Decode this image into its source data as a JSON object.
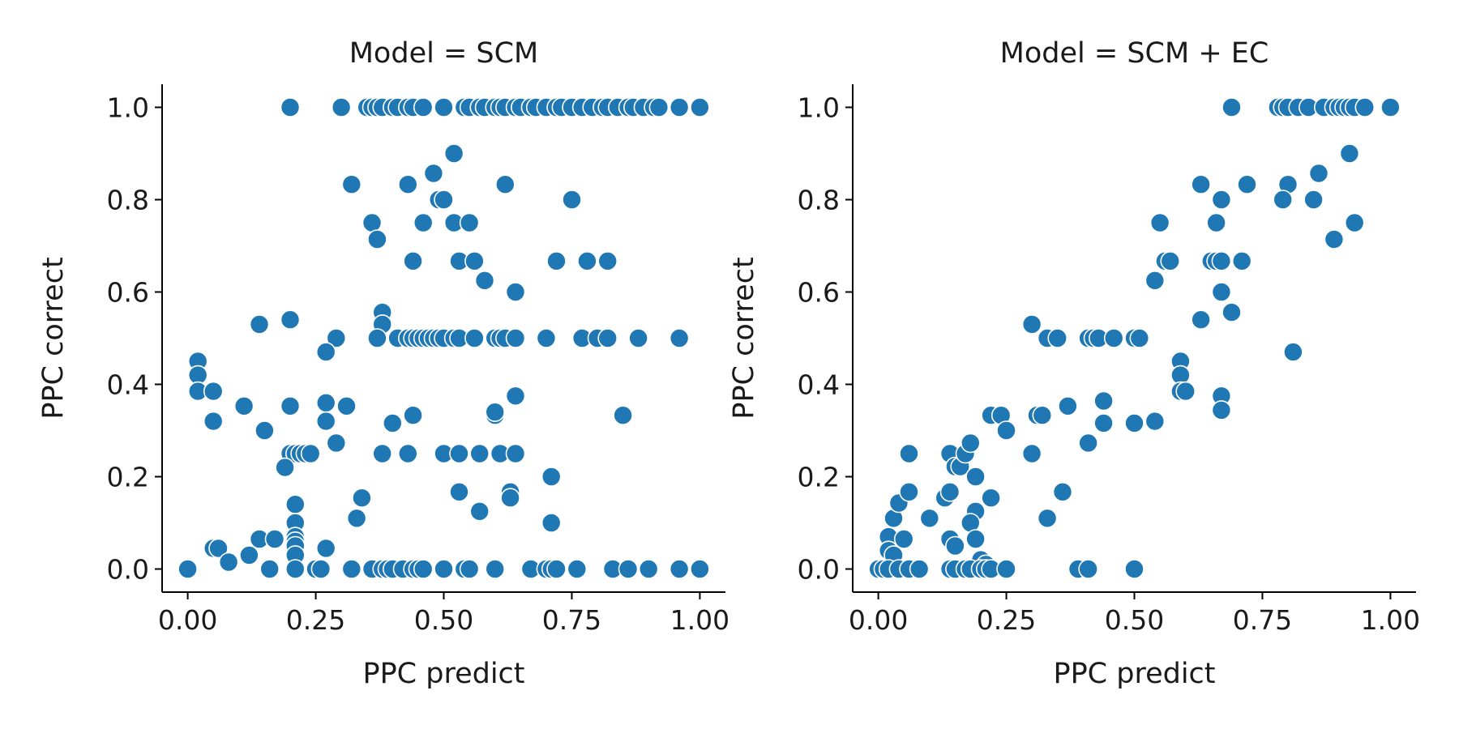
{
  "chart_data": [
    {
      "type": "scatter",
      "title": "Model = SCM",
      "xlabel": "PPC predict",
      "ylabel": "PPC correct",
      "xlim": [
        -0.05,
        1.05
      ],
      "ylim": [
        -0.05,
        1.05
      ],
      "xticks": [
        "0.00",
        "0.25",
        "0.50",
        "0.75",
        "1.00"
      ],
      "yticks": [
        "0.0",
        "0.2",
        "0.4",
        "0.6",
        "0.8",
        "1.0"
      ],
      "grid": false,
      "color": "#1f77b4",
      "x": [
        0.2,
        0.3,
        0.35,
        0.36,
        0.37,
        0.38,
        0.4,
        0.41,
        0.43,
        0.44,
        0.46,
        0.5,
        0.54,
        0.55,
        0.57,
        0.58,
        0.6,
        0.61,
        0.62,
        0.64,
        0.65,
        0.67,
        0.68,
        0.7,
        0.72,
        0.73,
        0.75,
        0.77,
        0.79,
        0.81,
        0.82,
        0.84,
        0.86,
        0.87,
        0.89,
        0.91,
        0.92,
        0.96,
        1.0,
        0.52,
        0.32,
        0.43,
        0.48,
        0.49,
        0.5,
        0.62,
        0.75,
        0.36,
        0.37,
        0.46,
        0.52,
        0.55,
        0.44,
        0.53,
        0.56,
        0.72,
        0.78,
        0.82,
        0.58,
        0.64,
        0.14,
        0.2,
        0.38,
        0.38,
        0.29,
        0.37,
        0.41,
        0.43,
        0.44,
        0.45,
        0.46,
        0.47,
        0.48,
        0.49,
        0.5,
        0.52,
        0.53,
        0.56,
        0.6,
        0.61,
        0.62,
        0.64,
        0.7,
        0.77,
        0.8,
        0.82,
        0.88,
        0.96,
        0.02,
        0.02,
        0.02,
        0.05,
        0.05,
        0.11,
        0.2,
        0.27,
        0.31,
        0.15,
        0.27,
        0.44,
        0.6,
        0.6,
        0.64,
        0.85,
        0.2,
        0.4,
        0.27,
        0.29,
        0.2,
        0.21,
        0.22,
        0.23,
        0.24,
        0.38,
        0.43,
        0.5,
        0.53,
        0.57,
        0.61,
        0.64,
        0.19,
        0.63,
        0.63,
        0.71,
        0.34,
        0.53,
        0.57,
        0.33,
        0.71,
        0.21,
        0.21,
        0.21,
        0.21,
        0.21,
        0.21,
        0.05,
        0.06,
        0.08,
        0.12,
        0.14,
        0.17,
        0.27,
        0.0,
        0.16,
        0.21,
        0.25,
        0.26,
        0.32,
        0.36,
        0.38,
        0.39,
        0.4,
        0.42,
        0.44,
        0.45,
        0.46,
        0.5,
        0.54,
        0.55,
        0.6,
        0.67,
        0.7,
        0.71,
        0.72,
        0.76,
        0.83,
        0.86,
        0.9,
        0.96,
        1.0
      ],
      "y": [
        1,
        1,
        1,
        1,
        1,
        1,
        1,
        1,
        1,
        1,
        1,
        1,
        1,
        1,
        1,
        1,
        1,
        1,
        1,
        1,
        1,
        1,
        1,
        1,
        1,
        1,
        1,
        1,
        1,
        1,
        1,
        1,
        1,
        1,
        1,
        1,
        1,
        1,
        1,
        0.9,
        0.833,
        0.833,
        0.857,
        0.8,
        0.8,
        0.833,
        0.8,
        0.75,
        0.714,
        0.75,
        0.75,
        0.75,
        0.667,
        0.667,
        0.667,
        0.667,
        0.667,
        0.667,
        0.625,
        0.6,
        0.53,
        0.54,
        0.556,
        0.53,
        0.5,
        0.5,
        0.5,
        0.5,
        0.5,
        0.5,
        0.5,
        0.5,
        0.5,
        0.5,
        0.5,
        0.5,
        0.5,
        0.5,
        0.5,
        0.5,
        0.5,
        0.5,
        0.5,
        0.5,
        0.5,
        0.5,
        0.5,
        0.5,
        0.45,
        0.42,
        0.385,
        0.385,
        0.32,
        0.353,
        0.353,
        0.47,
        0.353,
        0.3,
        0.36,
        0.333,
        0.333,
        0.34,
        0.375,
        0.333,
        0.353,
        0.316,
        0.32,
        0.273,
        0.25,
        0.25,
        0.25,
        0.25,
        0.25,
        0.25,
        0.25,
        0.25,
        0.25,
        0.25,
        0.25,
        0.25,
        0.22,
        0.167,
        0.154,
        0.2,
        0.154,
        0.167,
        0.125,
        0.11,
        0.1,
        0.14,
        0.1,
        0.07,
        0.06,
        0.05,
        0.03,
        0.045,
        0.045,
        0.015,
        0.03,
        0.065,
        0.065,
        0.045,
        0,
        0,
        0,
        0,
        0,
        0,
        0,
        0,
        0,
        0,
        0,
        0,
        0,
        0,
        0,
        0,
        0,
        0,
        0,
        0,
        0,
        0,
        0,
        0,
        0,
        0,
        0,
        0
      ]
    },
    {
      "type": "scatter",
      "title": "Model = SCM + EC",
      "xlabel": "PPC predict",
      "ylabel": "PPC correct",
      "xlim": [
        -0.05,
        1.05
      ],
      "ylim": [
        -0.05,
        1.05
      ],
      "xticks": [
        "0.00",
        "0.25",
        "0.50",
        "0.75",
        "1.00"
      ],
      "yticks": [
        "0.0",
        "0.2",
        "0.4",
        "0.6",
        "0.8",
        "1.0"
      ],
      "grid": false,
      "color": "#1f77b4",
      "x": [
        0.69,
        0.78,
        0.79,
        0.8,
        0.82,
        0.84,
        0.87,
        0.89,
        0.9,
        0.91,
        0.92,
        0.93,
        0.95,
        1.0,
        0.92,
        0.86,
        0.8,
        0.79,
        0.72,
        0.63,
        0.67,
        0.93,
        0.66,
        0.85,
        0.89,
        0.55,
        0.56,
        0.57,
        0.54,
        0.65,
        0.66,
        0.67,
        0.71,
        0.67,
        0.69,
        0.3,
        0.33,
        0.35,
        0.41,
        0.42,
        0.43,
        0.46,
        0.5,
        0.51,
        0.63,
        0.81,
        0.59,
        0.59,
        0.59,
        0.6,
        0.67,
        0.67,
        0.54,
        0.44,
        0.5,
        0.44,
        0.41,
        0.37,
        0.31,
        0.32,
        0.22,
        0.24,
        0.25,
        0.3,
        0.06,
        0.14,
        0.15,
        0.16,
        0.17,
        0.18,
        0.13,
        0.14,
        0.19,
        0.19,
        0.18,
        0.22,
        0.36,
        0.33,
        0.02,
        0.03,
        0.04,
        0.05,
        0.06,
        0.02,
        0.03,
        0.1,
        0.14,
        0.15,
        0.19,
        0.2,
        0.21,
        0.0,
        0.01,
        0.02,
        0.04,
        0.06,
        0.08,
        0.14,
        0.15,
        0.17,
        0.18,
        0.2,
        0.21,
        0.22,
        0.25,
        0.39,
        0.41,
        0.5
      ],
      "y": [
        1,
        1,
        1,
        1,
        1,
        1,
        1,
        1,
        1,
        1,
        1,
        1,
        1,
        1,
        0.9,
        0.857,
        0.833,
        0.8,
        0.833,
        0.833,
        0.8,
        0.75,
        0.75,
        0.8,
        0.714,
        0.75,
        0.667,
        0.667,
        0.625,
        0.667,
        0.667,
        0.667,
        0.667,
        0.6,
        0.556,
        0.53,
        0.5,
        0.5,
        0.5,
        0.5,
        0.5,
        0.5,
        0.5,
        0.5,
        0.54,
        0.47,
        0.45,
        0.42,
        0.385,
        0.385,
        0.375,
        0.344,
        0.32,
        0.364,
        0.316,
        0.316,
        0.273,
        0.353,
        0.333,
        0.333,
        0.333,
        0.333,
        0.3,
        0.25,
        0.25,
        0.25,
        0.222,
        0.222,
        0.25,
        0.273,
        0.154,
        0.167,
        0.2,
        0.125,
        0.1,
        0.154,
        0.167,
        0.11,
        0.07,
        0.11,
        0.143,
        0.065,
        0.167,
        0.04,
        0.03,
        0.11,
        0.065,
        0.05,
        0.065,
        0.02,
        0.01,
        0,
        0,
        0,
        0,
        0,
        0,
        0,
        0,
        0,
        0,
        0,
        0,
        0,
        0,
        0,
        0,
        0
      ]
    }
  ]
}
